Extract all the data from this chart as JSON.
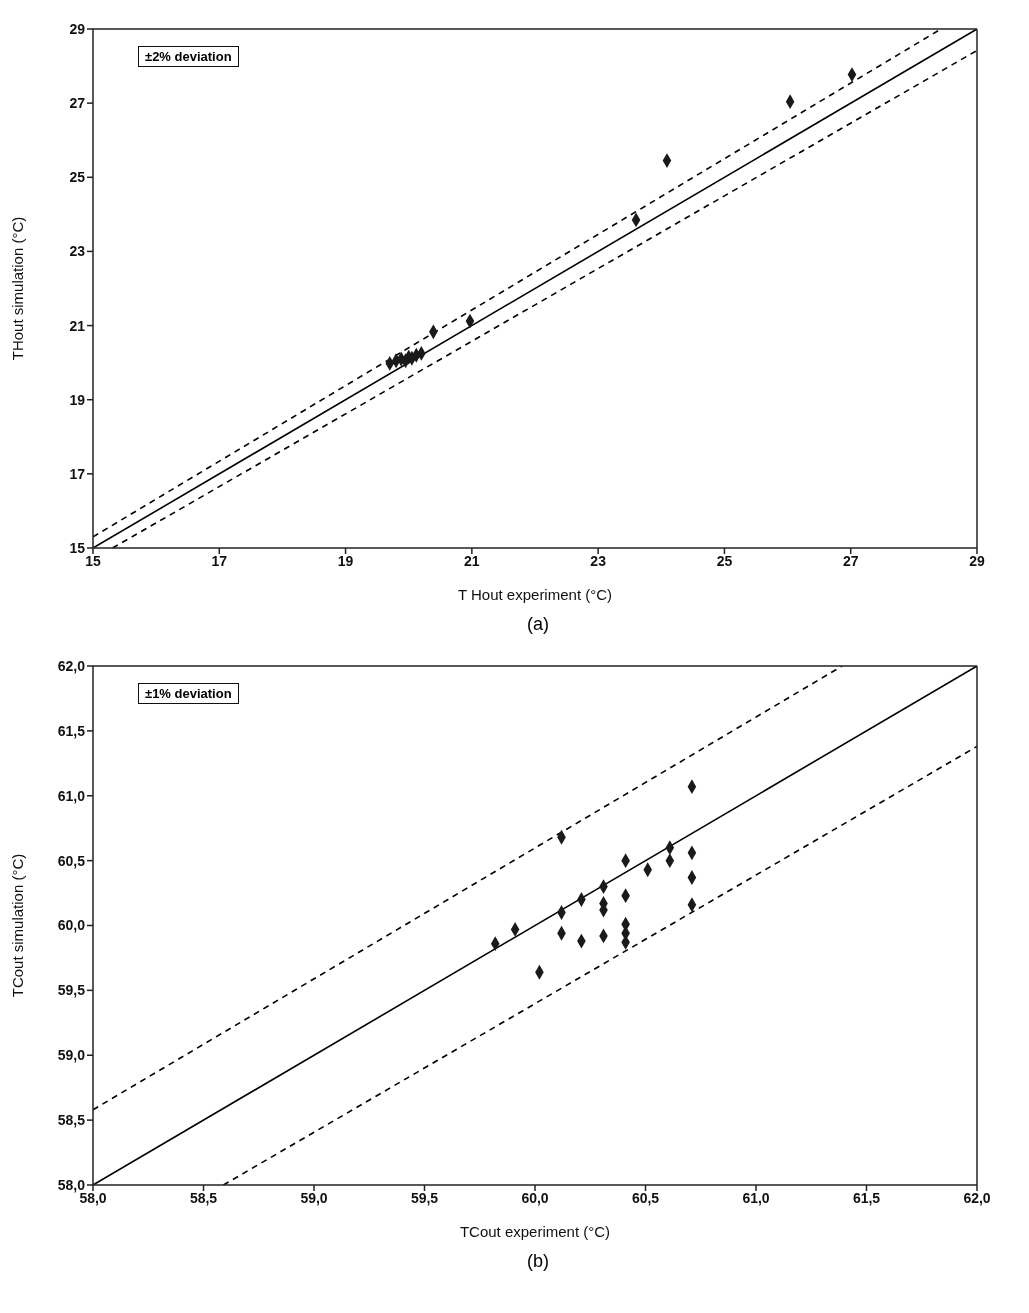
{
  "chart_data": [
    {
      "type": "scatter",
      "xlabel": "T Hout experiment (°C)",
      "ylabel": "THout simulation (°C)",
      "annotations": [
        "±2% deviation",
        "(a)"
      ],
      "xlim": [
        15,
        29
      ],
      "ylim": [
        15,
        29
      ],
      "xticks": [
        15,
        17,
        19,
        21,
        23,
        25,
        27,
        29
      ],
      "yticks": [
        15,
        17,
        19,
        21,
        23,
        25,
        27,
        29
      ],
      "grid": false,
      "series": [
        {
          "type": "line",
          "color": "#000000",
          "line_style": "solid",
          "marker": "none",
          "x": [
            15,
            29
          ],
          "values": [
            15,
            29
          ]
        },
        {
          "type": "line",
          "color": "#000000",
          "line_style": "dashed",
          "marker": "none",
          "x": [
            15,
            28.43
          ],
          "values": [
            15.3,
            29
          ]
        },
        {
          "type": "line",
          "color": "#000000",
          "line_style": "dashed",
          "marker": "none",
          "x": [
            15.31,
            29
          ],
          "values": [
            15,
            28.42
          ]
        },
        {
          "color": "#1a1a1a",
          "marker": "diamond",
          "x": [
            27.02,
            26.04,
            24.09,
            23.6,
            20.97,
            20.39,
            19.7,
            19.8,
            19.88,
            19.95,
            20.0,
            20.05,
            20.12,
            20.2
          ],
          "values": [
            27.77,
            27.04,
            25.45,
            23.85,
            21.12,
            20.83,
            19.98,
            20.05,
            20.1,
            20.05,
            20.15,
            20.12,
            20.2,
            20.25
          ]
        }
      ]
    },
    {
      "type": "scatter",
      "xlabel": "TCout experiment (°C)",
      "ylabel": "TCout simulation (°C)",
      "annotations": [
        "±1% deviation",
        "(b)"
      ],
      "xlim": [
        58,
        62
      ],
      "ylim": [
        58,
        62
      ],
      "xticks": [
        {
          "value": 58,
          "label": "58,0"
        },
        {
          "value": 58.5,
          "label": "58,5"
        },
        {
          "value": 59,
          "label": "59,0"
        },
        {
          "value": 59.5,
          "label": "59,5"
        },
        {
          "value": 60,
          "label": "60,0"
        },
        {
          "value": 60.5,
          "label": "60,5"
        },
        {
          "value": 61,
          "label": "61,0"
        },
        {
          "value": 61.5,
          "label": "61,5"
        },
        {
          "value": 62,
          "label": "62,0"
        }
      ],
      "yticks": [
        {
          "value": 58,
          "label": "58,0"
        },
        {
          "value": 58.5,
          "label": "58,5"
        },
        {
          "value": 59,
          "label": "59,0"
        },
        {
          "value": 59.5,
          "label": "59,5"
        },
        {
          "value": 60,
          "label": "60,0"
        },
        {
          "value": 60.5,
          "label": "60,5"
        },
        {
          "value": 61,
          "label": "61,0"
        },
        {
          "value": 61.5,
          "label": "61,5"
        },
        {
          "value": 62,
          "label": "62,0"
        }
      ],
      "grid": false,
      "series": [
        {
          "type": "line",
          "color": "#000000",
          "line_style": "solid",
          "marker": "none",
          "x": [
            58,
            62
          ],
          "values": [
            58,
            62
          ]
        },
        {
          "type": "line",
          "color": "#000000",
          "line_style": "dashed",
          "marker": "none",
          "x": [
            58,
            61.39
          ],
          "values": [
            58.58,
            62
          ]
        },
        {
          "type": "line",
          "color": "#000000",
          "line_style": "dashed",
          "marker": "none",
          "x": [
            58.59,
            62
          ],
          "values": [
            58,
            61.38
          ]
        },
        {
          "color": "#1a1a1a",
          "marker": "diamond",
          "x": [
            60.71,
            60.12,
            60.41,
            60.61,
            60.61,
            60.71,
            60.51,
            60.71,
            60.31,
            60.21,
            60.41,
            60.31,
            60.31,
            60.71,
            60.12,
            59.91,
            59.82,
            60.12,
            60.21,
            60.31,
            60.41,
            60.41,
            60.41,
            60.02
          ],
          "values": [
            61.07,
            60.68,
            60.5,
            60.6,
            60.5,
            60.56,
            60.43,
            60.37,
            60.3,
            60.2,
            60.23,
            60.17,
            60.12,
            60.16,
            60.1,
            59.97,
            59.86,
            59.94,
            59.88,
            59.92,
            60.01,
            59.94,
            59.87,
            59.64
          ]
        }
      ]
    }
  ]
}
